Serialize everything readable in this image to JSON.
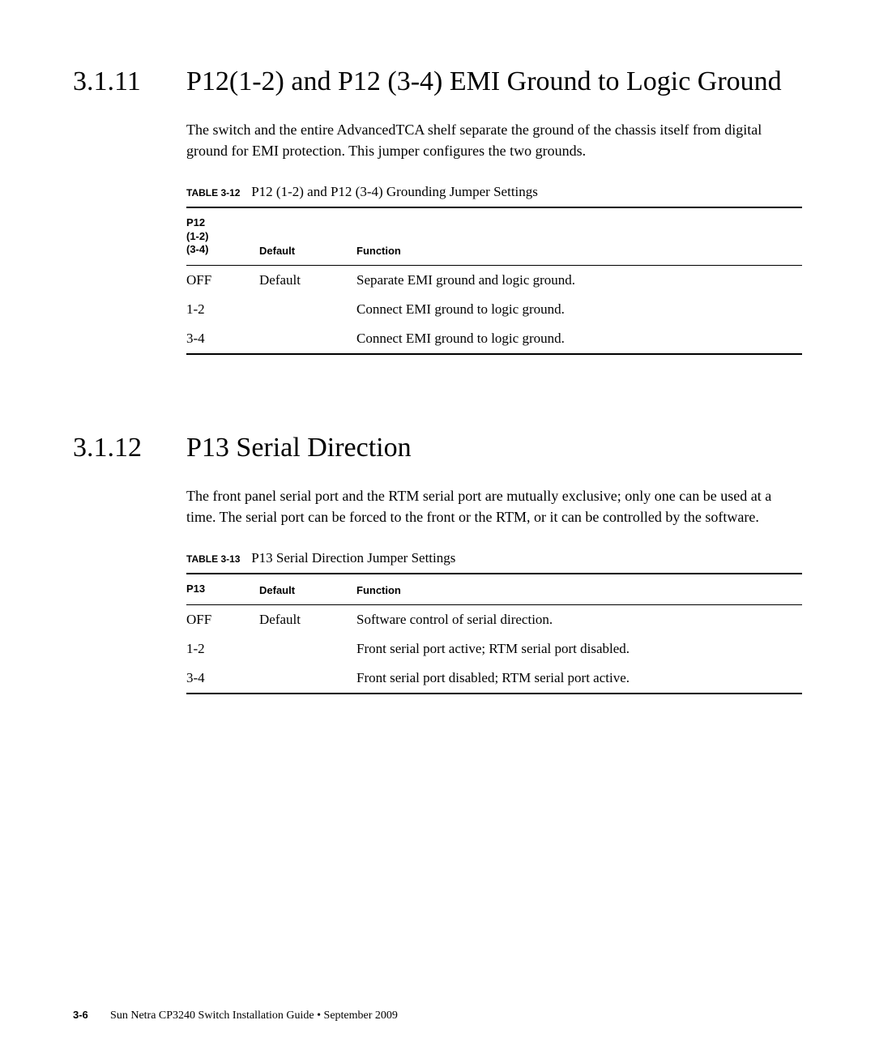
{
  "section1": {
    "number": "3.1.11",
    "title": "P12(1-2) and P12 (3-4) EMI Ground to Logic Ground",
    "body": "The switch and the entire AdvancedTCA shelf separate the ground of the chassis itself from digital ground for EMI protection. This jumper configures the two grounds.",
    "table_label": "TABLE 3-12",
    "table_caption": "P12 (1-2) and P12 (3-4) Grounding Jumper Settings",
    "columns": {
      "col1_line1": "P12",
      "col1_line2": "(1-2)",
      "col1_line3": "(3-4)",
      "col2": "Default",
      "col3": "Function"
    },
    "rows": [
      {
        "c1": "OFF",
        "c2": "Default",
        "c3": "Separate EMI ground and logic ground."
      },
      {
        "c1": "1-2",
        "c2": "",
        "c3": "Connect EMI ground to logic ground."
      },
      {
        "c1": "3-4",
        "c2": "",
        "c3": "Connect EMI ground to logic ground."
      }
    ]
  },
  "section2": {
    "number": "3.1.12",
    "title": "P13 Serial Direction",
    "body": "The front panel serial port and the RTM serial port are mutually exclusive; only one can be used at a time. The serial port can be forced to the front or the RTM, or it can be controlled by the software.",
    "table_label": "TABLE 3-13",
    "table_caption": "P13 Serial Direction Jumper Settings",
    "columns": {
      "col1": "P13",
      "col2": "Default",
      "col3": "Function"
    },
    "rows": [
      {
        "c1": "OFF",
        "c2": "Default",
        "c3": "Software control of serial direction."
      },
      {
        "c1": "1-2",
        "c2": "",
        "c3": "Front serial port active; RTM serial port disabled."
      },
      {
        "c1": "3-4",
        "c2": "",
        "c3": "Front serial port disabled; RTM serial port active."
      }
    ]
  },
  "footer": {
    "pagenum": "3-6",
    "text": "Sun Netra CP3240 Switch Installation Guide  •  September 2009"
  }
}
